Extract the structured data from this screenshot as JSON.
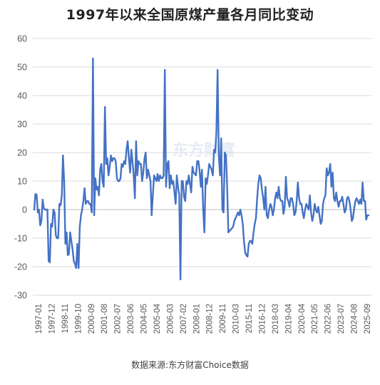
{
  "chart_data": {
    "type": "line",
    "title": "1997年以来全国原煤产量各月同比变动",
    "source": "数据来源:东方财富Choice数据",
    "watermark": "东方财富",
    "xlabel": "",
    "ylabel": "",
    "ylim": [
      -30,
      60
    ],
    "yticks": [
      60,
      50,
      40,
      30,
      20,
      10,
      0,
      -10,
      -20,
      -30
    ],
    "xtick_labels": [
      "1997-01",
      "1997-12",
      "1998-11",
      "1999-10",
      "2000-09",
      "2001-08",
      "2002-07",
      "2003-06",
      "2004-05",
      "2005-04",
      "2006-03",
      "2007-02",
      "2008-01",
      "2008-12",
      "2009-11",
      "2010-03",
      "2015-11",
      "2016-12",
      "2018-03",
      "2019-04",
      "2020-04",
      "2021-05",
      "2022-06",
      "2023-07",
      "2024-08",
      "2025-09"
    ],
    "grid": true,
    "legend": "none",
    "line_color": "#4472C4",
    "series": [
      {
        "values": [
          0.0,
          5.5,
          5.2,
          -1.0,
          0.0,
          -5.5,
          -4.0,
          3.5,
          0.5,
          0.0,
          0.0,
          0.0,
          -18.0,
          -18.5,
          -5.0,
          -6.0,
          0.0,
          -1.0,
          -9.0,
          -10.0,
          -10.0,
          2.0,
          1.5,
          5.0,
          19.0,
          10.0,
          -12.0,
          -8.0,
          -16.0,
          -15.5,
          -8.0,
          -11.0,
          -14.0,
          -18.0,
          -19.0,
          -20.5,
          -12.0,
          -20.5,
          -6.0,
          -2.0,
          0.0,
          3.0,
          7.5,
          2.0,
          3.0,
          3.0,
          2.0,
          2.0,
          -1.0,
          53.0,
          -2.0,
          11.0,
          7.0,
          8.0,
          5.0,
          14.0,
          16.0,
          10.0,
          8.0,
          36.0,
          16.0,
          18.0,
          12.0,
          15.0,
          19.0,
          17.0,
          18.0,
          18.0,
          17.0,
          11.0,
          10.0,
          10.0,
          11.0,
          16.0,
          15.0,
          17.0,
          16.0,
          21.0,
          24.0,
          18.0,
          13.0,
          21.0,
          17.0,
          12.0,
          4.0,
          24.0,
          12.0,
          17.0,
          16.0,
          16.0,
          10.0,
          13.0,
          18.0,
          20.0,
          11.0,
          14.0,
          12.0,
          10.0,
          -2.0,
          5.0,
          12.0,
          11.0,
          10.0,
          12.5,
          10.0,
          12.0,
          11.0,
          11.0,
          12.0,
          49.0,
          8.0,
          16.0,
          17.0,
          7.5,
          12.0,
          9.0,
          10.0,
          6.0,
          2.0,
          12.0,
          8.0,
          5.0,
          -24.5,
          10.0,
          10.0,
          4.5,
          3.0,
          10.0,
          9.0,
          12.0,
          9.0,
          6.0,
          15.0,
          13.0,
          12.5,
          12.0,
          17.0,
          17.0,
          13.5,
          8.0,
          14.0,
          0.0,
          -8.0,
          11.0,
          9.0,
          12.0,
          16.0,
          15.0,
          14.0,
          12.0,
          21.0,
          20.0,
          27.0,
          49.0,
          19.0,
          12.0,
          25.0,
          0.0,
          -1.0,
          20.0,
          19.0,
          8.0,
          -8.0,
          -7.5,
          -7.0,
          -6.5,
          -6.0,
          -4.0,
          -3.0,
          -2.0,
          -1.0,
          -2.0,
          0.0,
          -2.0,
          -5.0,
          -11.0,
          -15.0,
          -16.0,
          -16.5,
          -12.0,
          -11.0,
          -11.0,
          -12.0,
          -8.0,
          -5.0,
          -3.0,
          4.0,
          9.0,
          12.0,
          11.0,
          7.0,
          4.0,
          0.0,
          8.0,
          -2.0,
          -3.0,
          0.0,
          2.0,
          1.0,
          -2.0,
          0.0,
          4.0,
          6.0,
          4.0,
          8.0,
          4.0,
          3.0,
          3.0,
          -1.5,
          1.0,
          11.5,
          4.0,
          3.0,
          1.0,
          4.0,
          4.0,
          2.0,
          -2.0,
          -1.0,
          3.0,
          9.5,
          4.0,
          2.0,
          2.0,
          -1.0,
          -3.0,
          0.0,
          2.0,
          1.0,
          0.0,
          5.0,
          -1.0,
          -4.0,
          -2.0,
          2.0,
          0.0,
          -1.0,
          1.0,
          -2.0,
          -5.0,
          -4.0,
          2.0,
          4.0,
          5.0,
          14.5,
          12.0,
          13.0,
          16.0,
          8.0,
          13.0,
          4.0,
          3.0,
          6.0,
          3.0,
          1.0,
          3.0,
          3.0,
          4.5,
          2.0,
          -1.0,
          0.0,
          4.0,
          4.5,
          3.0,
          0.0,
          -4.0,
          -3.0,
          0.5,
          3.0,
          4.0,
          3.0,
          2.0,
          3.5,
          2.0,
          9.5,
          3.0,
          3.0,
          -3.5,
          -2.0,
          -2.0
        ]
      }
    ]
  }
}
